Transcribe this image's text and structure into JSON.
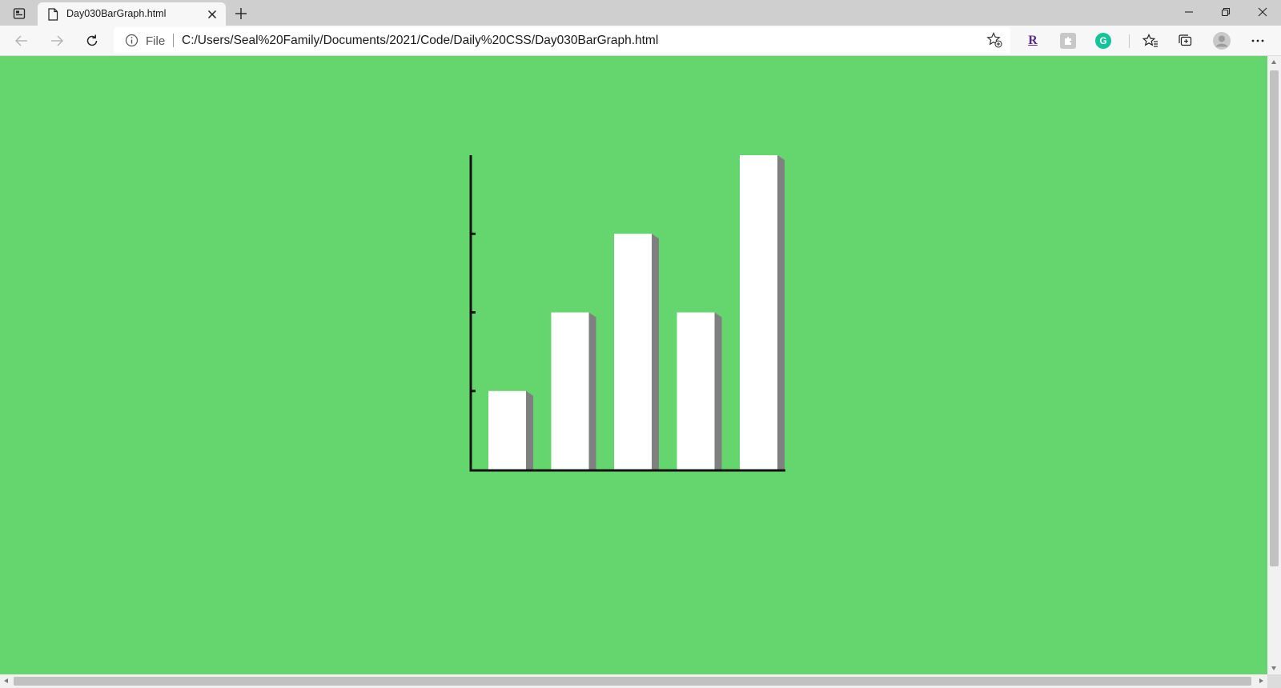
{
  "browser": {
    "tab": {
      "title": "Day030BarGraph.html",
      "close_icon": "close-icon",
      "page_icon": "page-icon"
    },
    "new_tab_icon": "plus-icon",
    "window_controls": {
      "minimize_icon": "minimize-icon",
      "restore_icon": "restore-icon",
      "close_icon": "close-icon"
    },
    "address_bar": {
      "scheme_label": "File",
      "url": "C:/Users/Seal%20Family/Documents/2021/Code/Daily%20CSS/Day030BarGraph.html",
      "info_icon": "info-icon",
      "add_favorite_icon": "star-plus-icon"
    },
    "extensions": [
      {
        "name": "R",
        "color": "#5b2a86"
      },
      {
        "name": "puzzle-extension",
        "color": "#9b9b9b"
      },
      {
        "name": "G",
        "color": "#15c39a"
      }
    ]
  },
  "page": {
    "background_color": "#65d66e"
  },
  "chart_data": {
    "type": "bar",
    "title": "",
    "xlabel": "",
    "ylabel": "",
    "categories": [
      "",
      "",
      "",
      "",
      ""
    ],
    "values": [
      1,
      2,
      3,
      2,
      4
    ],
    "ylim": [
      0,
      4
    ],
    "y_ticks": [
      1,
      2,
      3
    ],
    "grid": false,
    "bar_color": "#ffffff",
    "shadow_color": "#808080",
    "axis_color": "#111111"
  }
}
